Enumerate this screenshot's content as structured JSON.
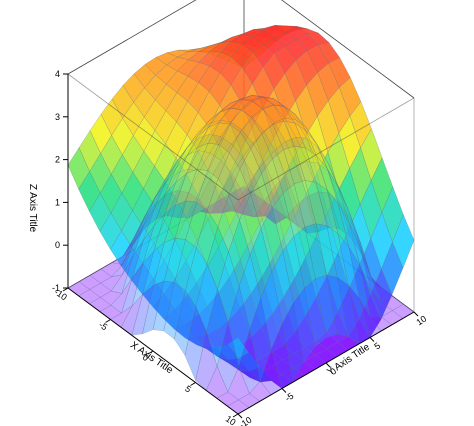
{
  "chart_data": {
    "type": "surface3d",
    "title": "",
    "xlabel": "X Axis Title",
    "ylabel": "Y Axis Title",
    "zlabel": "Z Axis Title",
    "xlim": [
      -10,
      10
    ],
    "ylim": [
      -10,
      10
    ],
    "zlim": [
      -1,
      4
    ],
    "x_ticks": [
      "-10",
      "-5",
      "0",
      "5",
      "10"
    ],
    "y_ticks": [
      "-10",
      "-5",
      "0",
      "5",
      "10"
    ],
    "z_ticks": [
      "-1",
      "0",
      "1",
      "2",
      "3",
      "4"
    ],
    "grid_x": [
      -10,
      -8.75,
      -7.5,
      -6.25,
      -5,
      -3.75,
      -2.5,
      -1.25,
      0,
      1.25,
      2.5,
      3.75,
      5,
      6.25,
      7.5,
      8.75,
      10
    ],
    "grid_y": [
      -10,
      -8.75,
      -7.5,
      -6.25,
      -5,
      -3.75,
      -2.5,
      -1.25,
      0,
      1.25,
      2.5,
      3.75,
      5,
      6.25,
      7.5,
      8.75,
      10
    ],
    "surfaces": [
      {
        "style": "opaque",
        "colormap": "rainbow",
        "description_from_axes": "saddle-shaped wave surface",
        "z_corners": {
          "x-10_y-10": 0.5,
          "x-10_y10": 4.0,
          "x10_y-10": -1.0,
          "x10_y10": 0.5
        }
      },
      {
        "style": "translucent",
        "colormap": "rainbow",
        "description_from_axes": "dome-shaped translucent surface",
        "z_center": 3.6
      }
    ],
    "colormap_stops": [
      "#7a00ff",
      "#1e6bff",
      "#19d3ff",
      "#25e07a",
      "#f2f21a",
      "#ff9a1a",
      "#ff2a2a"
    ]
  }
}
